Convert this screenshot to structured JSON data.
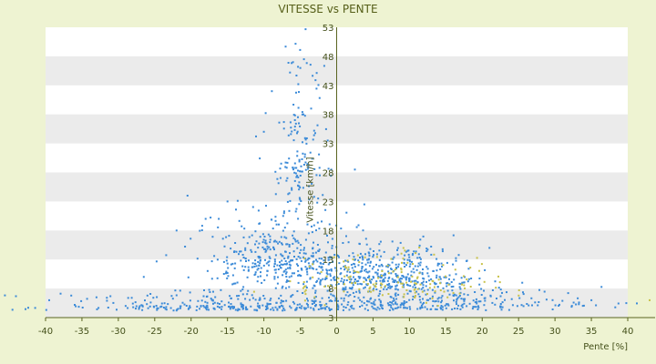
{
  "chart_data": {
    "type": "scatter",
    "title": "VITESSE vs PENTE",
    "xlabel": "Pente [%]",
    "ylabel": "Vitesse [km/h]",
    "xlim": [
      -40,
      40
    ],
    "ylim": [
      3,
      53
    ],
    "x_ticks": [
      "-40",
      "-35",
      "-30",
      "-25",
      "-20",
      "-15",
      "-10",
      "-5",
      "0",
      "5",
      "10",
      "15",
      "20",
      "25",
      "30",
      "35",
      "40"
    ],
    "y_ticks": [
      "3",
      "8",
      "13",
      "18",
      "23",
      "28",
      "33",
      "38",
      "43",
      "48",
      "53"
    ],
    "grid": "horizontal alternating bands",
    "legend": "none",
    "colors": {
      "primary_points": "#3C8BD8",
      "secondary_points": "#C8C24A",
      "band": "#EBEBEB",
      "axis": "#5A6420",
      "background": "#EEF3D2",
      "plot_bg": "#FFFFFF"
    },
    "approximate_point_count": 1900,
    "series": [
      {
        "color": "#3C8BD8",
        "clusters": [
          {
            "x_center": -5,
            "x_spread": 1.8,
            "y_center": 30,
            "y_spread": 9,
            "count": 150
          },
          {
            "x_center": -8,
            "x_spread": 5,
            "y_center": 13,
            "y_spread": 4,
            "count": 350
          },
          {
            "x_center": 6,
            "x_spread": 6,
            "y_center": 10,
            "y_spread": 3,
            "count": 450
          },
          {
            "x_center": -12,
            "x_spread": 13,
            "y_center": 5,
            "y_spread": 1.3,
            "count": 350
          },
          {
            "x_center": 12,
            "x_spread": 10,
            "y_center": 5.5,
            "y_spread": 1.5,
            "count": 250
          }
        ],
        "points": [
          [
            -39.5,
            6.0
          ],
          [
            -36.0,
            5.2
          ],
          [
            -33.0,
            6.5
          ],
          [
            -29.0,
            5.0
          ],
          [
            -26.5,
            10.0
          ],
          [
            -22.0,
            18.0
          ],
          [
            -20.5,
            24.0
          ],
          [
            -18.0,
            20.0
          ],
          [
            -15.0,
            23.0
          ],
          [
            -10.0,
            35.0
          ],
          [
            -6.0,
            47.0
          ],
          [
            -5.0,
            46.0
          ],
          [
            -4.5,
            47.5
          ],
          [
            -3.5,
            39.0
          ],
          [
            2.5,
            28.5
          ],
          [
            3.8,
            22.5
          ],
          [
            21.0,
            15.0
          ],
          [
            25.5,
            9.0
          ],
          [
            35.0,
            6.0
          ],
          [
            39.8,
            5.5
          ]
        ]
      },
      {
        "color": "#C8C24A",
        "clusters": [
          {
            "x_center": 8,
            "x_spread": 7,
            "y_center": 9,
            "y_spread": 3,
            "count": 150
          }
        ],
        "points": [
          [
            43.0,
            6.0
          ]
        ]
      }
    ]
  }
}
